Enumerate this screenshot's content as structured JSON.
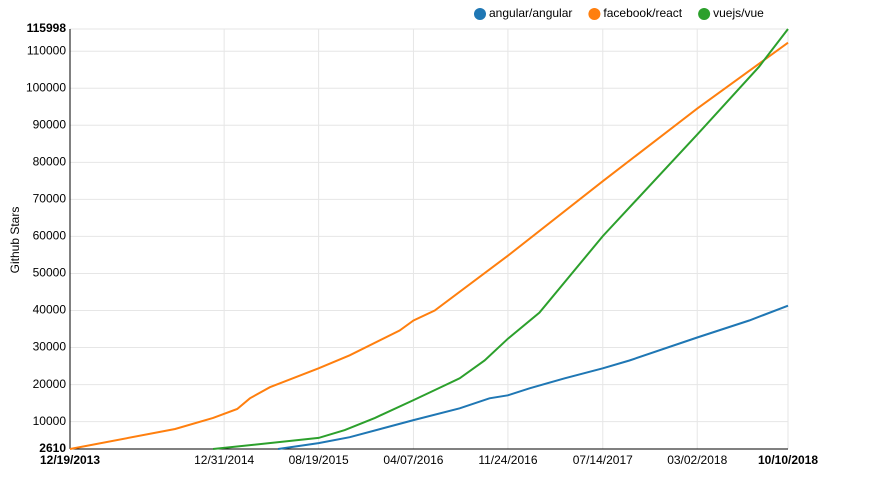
{
  "chart_data": {
    "type": "line",
    "y_label": "Github Stars",
    "xlim": [
      "12/19/2013",
      "10/10/2018"
    ],
    "xticks": [
      "12/19/2013",
      "12/31/2014",
      "08/19/2015",
      "04/07/2016",
      "11/24/2016",
      "07/14/2017",
      "03/02/2018",
      "10/10/2018"
    ],
    "ylim": [
      2610,
      115998
    ],
    "yticks": [
      2610,
      10000,
      20000,
      30000,
      40000,
      50000,
      60000,
      70000,
      80000,
      90000,
      100000,
      110000,
      115998
    ],
    "grid": true,
    "legend": "top-right",
    "series": [
      {
        "name": "angular/angular",
        "color": "#1f77b4",
        "x": [
          "05/12/2015",
          "08/19/2015",
          "11/03/2015",
          "04/07/2016",
          "07/29/2016",
          "10/10/2016",
          "11/24/2016",
          "01/16/2017",
          "04/12/2017",
          "07/14/2017",
          "09/17/2017",
          "03/02/2018",
          "07/07/2018",
          "10/10/2018"
        ],
        "values": [
          2610,
          4200,
          5800,
          10400,
          13600,
          16300,
          17100,
          19000,
          21700,
          24400,
          26500,
          32700,
          37300,
          41300
        ]
      },
      {
        "name": "facebook/react",
        "color": "#ff7f0e",
        "x": [
          "12/19/2013",
          "09/02/2014",
          "12/04/2014",
          "02/01/2015",
          "03/04/2015",
          "04/22/2015",
          "08/19/2015",
          "11/03/2015",
          "03/04/2016",
          "04/07/2016",
          "05/29/2016",
          "11/24/2016",
          "07/14/2017",
          "03/02/2018",
          "10/10/2018"
        ],
        "values": [
          2610,
          8000,
          11000,
          13400,
          16300,
          19300,
          24400,
          27900,
          34600,
          37300,
          40000,
          54800,
          74900,
          94500,
          112300
        ]
      },
      {
        "name": "vuejs/vue",
        "color": "#2ca02c",
        "x": [
          "12/04/2014",
          "08/19/2015",
          "10/22/2015",
          "01/04/2016",
          "04/07/2016",
          "05/29/2016",
          "07/29/2016",
          "09/28/2016",
          "11/24/2016",
          "02/09/2017",
          "07/14/2017",
          "03/02/2018",
          "07/31/2018",
          "10/10/2018"
        ],
        "values": [
          2610,
          5600,
          7700,
          11000,
          15800,
          18500,
          21700,
          26500,
          32400,
          39400,
          60100,
          87500,
          105800,
          115998
        ]
      }
    ]
  }
}
